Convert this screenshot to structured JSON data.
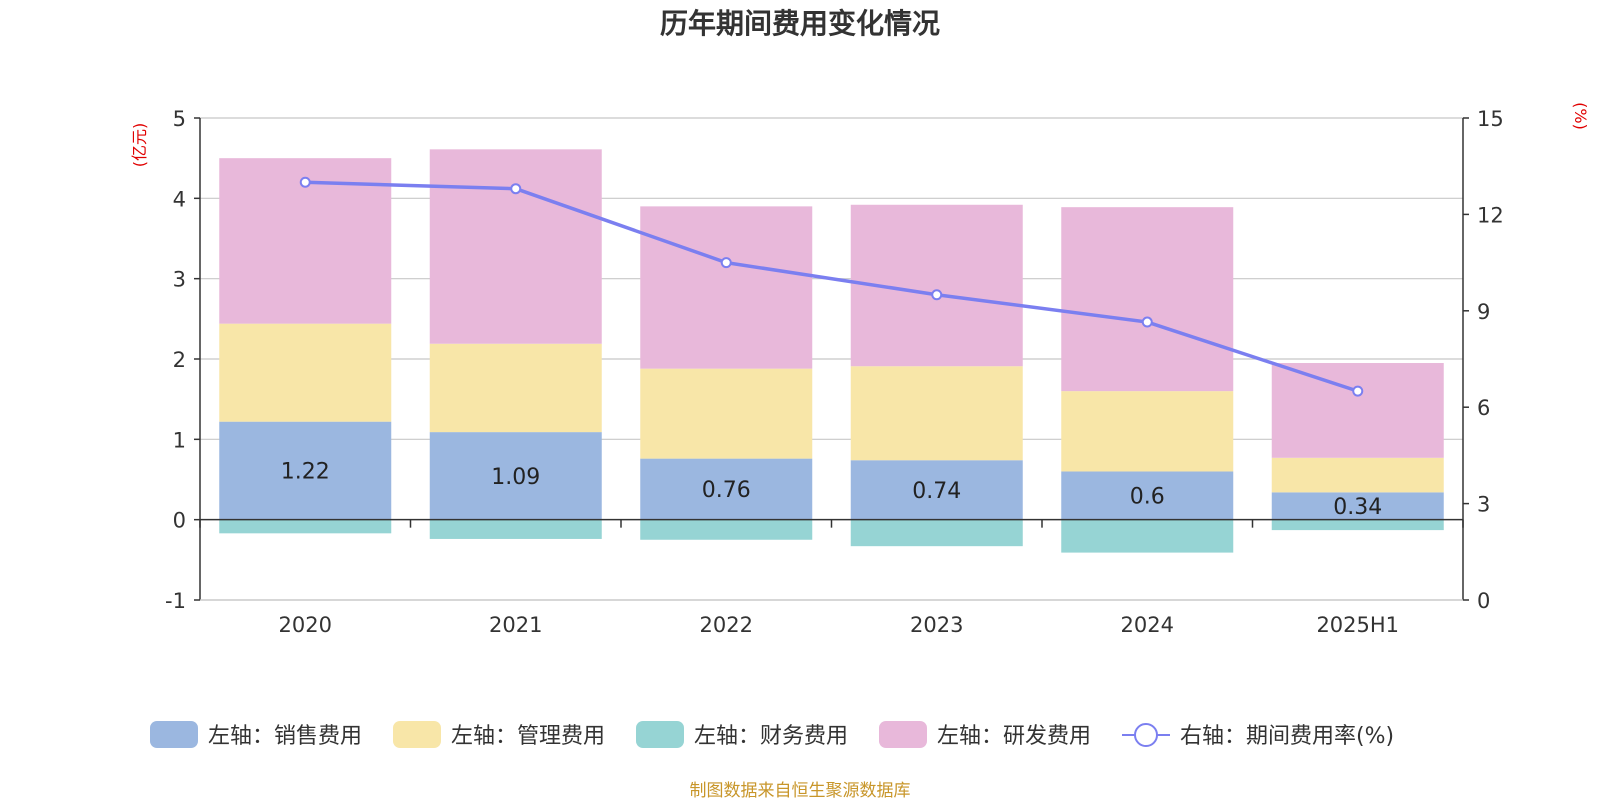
{
  "title": "历年期间费用变化情况",
  "source_note": "制图数据来自恒生聚源数据库",
  "chart_data": {
    "type": "bar",
    "stacked": true,
    "categories": [
      "2020",
      "2021",
      "2022",
      "2023",
      "2024",
      "2025H1"
    ],
    "left_axis": {
      "unit": "(亿元)",
      "ylim": [
        -1,
        5
      ],
      "ticks": [
        -1,
        0,
        1,
        2,
        3,
        4,
        5
      ]
    },
    "right_axis": {
      "unit": "(%)",
      "ylim": [
        0,
        15
      ],
      "ticks": [
        0,
        3,
        6,
        9,
        12,
        15
      ]
    },
    "grid": true,
    "legend_position": "bottom",
    "series": [
      {
        "name": "左轴：销售费用",
        "type": "bar",
        "axis": "left",
        "color": "#9bb7e0",
        "values": [
          1.22,
          1.09,
          0.76,
          0.74,
          0.6,
          0.34
        ],
        "labels": [
          "1.22",
          "1.09",
          "0.76",
          "0.74",
          "0.6",
          "0.34"
        ]
      },
      {
        "name": "左轴：管理费用",
        "type": "bar",
        "axis": "left",
        "color": "#f8e6a8",
        "values": [
          1.22,
          1.1,
          1.12,
          1.17,
          1.0,
          0.43
        ]
      },
      {
        "name": "左轴：财务费用",
        "type": "bar",
        "axis": "left",
        "color": "#96d4d4",
        "values": [
          -0.17,
          -0.24,
          -0.25,
          -0.33,
          -0.41,
          -0.13
        ]
      },
      {
        "name": "左轴：研发费用",
        "type": "bar",
        "axis": "left",
        "color": "#e8b8da",
        "values": [
          2.06,
          2.42,
          2.02,
          2.01,
          2.29,
          1.18
        ]
      },
      {
        "name": "右轴：期间费用率(%)",
        "type": "line",
        "axis": "right",
        "color": "#7b7ff0",
        "values": [
          13.0,
          12.8,
          10.5,
          9.5,
          8.65,
          6.5
        ]
      }
    ]
  }
}
